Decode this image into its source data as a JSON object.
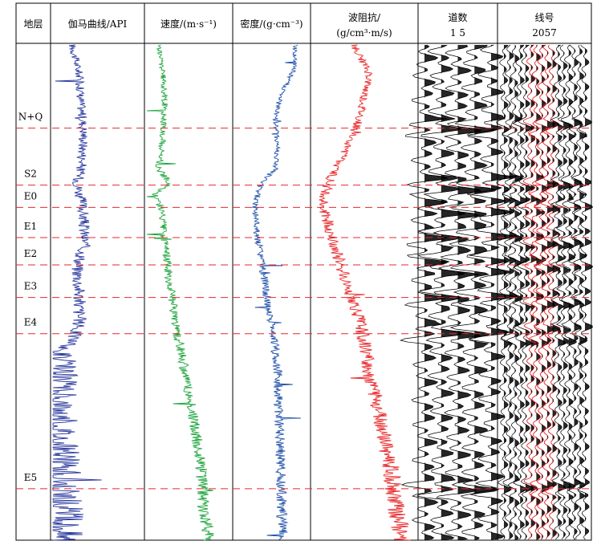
{
  "chart_data": {
    "type": "line",
    "title": "",
    "tracks": [
      {
        "key": "strata",
        "header": [
          "地层"
        ]
      },
      {
        "key": "gamma",
        "header": [
          "伽马曲线/API"
        ],
        "color": "#2b3a9e"
      },
      {
        "key": "velocity",
        "header": [
          "速度/(m·s⁻¹)"
        ],
        "color": "#1aa33a"
      },
      {
        "key": "density",
        "header": [
          "密度/(g·cm⁻³)"
        ],
        "color": "#1f4fa8"
      },
      {
        "key": "impedance",
        "header": [
          "波阻抗/",
          "(g/cm³·m/s)"
        ],
        "color": "#e8272a"
      },
      {
        "key": "trace_number",
        "header": [
          "道数",
          "1      5"
        ],
        "color": "#000000"
      },
      {
        "key": "line_number",
        "header": [
          "线号",
          "2057"
        ],
        "color": "#000000",
        "overlay_color": "#e8272a"
      }
    ],
    "strata": [
      {
        "label": "N+Q",
        "boundary_depth": 0.168
      },
      {
        "label": "S2",
        "boundary_depth": 0.283
      },
      {
        "label": "E0",
        "boundary_depth": 0.328
      },
      {
        "label": "E1",
        "boundary_depth": 0.389
      },
      {
        "label": "E2",
        "boundary_depth": 0.444
      },
      {
        "label": "E3",
        "boundary_depth": 0.51
      },
      {
        "label": "E4",
        "boundary_depth": 0.583
      },
      {
        "label": "E5",
        "boundary_depth": 0.896
      }
    ],
    "boundary_line_color": "#e8272a",
    "log_shapes": {
      "gamma": [
        [
          0.0,
          0.22
        ],
        [
          0.06,
          0.3
        ],
        [
          0.12,
          0.32
        ],
        [
          0.18,
          0.35
        ],
        [
          0.24,
          0.33
        ],
        [
          0.28,
          0.28
        ],
        [
          0.33,
          0.34
        ],
        [
          0.4,
          0.36
        ],
        [
          0.45,
          0.28
        ],
        [
          0.5,
          0.3
        ],
        [
          0.56,
          0.3
        ],
        [
          0.6,
          0.22
        ],
        [
          0.62,
          0.05
        ],
        [
          0.7,
          0.06
        ],
        [
          0.8,
          0.08
        ],
        [
          0.9,
          0.12
        ],
        [
          1.0,
          0.14
        ]
      ],
      "velocity": [
        [
          0.0,
          0.15
        ],
        [
          0.06,
          0.2
        ],
        [
          0.12,
          0.22
        ],
        [
          0.18,
          0.2
        ],
        [
          0.25,
          0.15
        ],
        [
          0.28,
          0.28
        ],
        [
          0.3,
          0.1
        ],
        [
          0.33,
          0.18
        ],
        [
          0.4,
          0.22
        ],
        [
          0.5,
          0.3
        ],
        [
          0.58,
          0.36
        ],
        [
          0.65,
          0.45
        ],
        [
          0.75,
          0.55
        ],
        [
          0.85,
          0.65
        ],
        [
          0.95,
          0.68
        ],
        [
          1.0,
          0.75
        ]
      ],
      "density": [
        [
          0.0,
          0.82
        ],
        [
          0.05,
          0.8
        ],
        [
          0.1,
          0.62
        ],
        [
          0.15,
          0.55
        ],
        [
          0.2,
          0.58
        ],
        [
          0.25,
          0.55
        ],
        [
          0.28,
          0.35
        ],
        [
          0.32,
          0.28
        ],
        [
          0.38,
          0.3
        ],
        [
          0.45,
          0.38
        ],
        [
          0.52,
          0.45
        ],
        [
          0.58,
          0.52
        ],
        [
          0.66,
          0.58
        ],
        [
          0.75,
          0.6
        ],
        [
          0.85,
          0.62
        ],
        [
          1.0,
          0.65
        ]
      ],
      "impedance": [
        [
          0.0,
          0.4
        ],
        [
          0.06,
          0.55
        ],
        [
          0.1,
          0.5
        ],
        [
          0.15,
          0.45
        ],
        [
          0.2,
          0.35
        ],
        [
          0.28,
          0.15
        ],
        [
          0.32,
          0.1
        ],
        [
          0.38,
          0.18
        ],
        [
          0.45,
          0.28
        ],
        [
          0.52,
          0.4
        ],
        [
          0.58,
          0.48
        ],
        [
          0.66,
          0.55
        ],
        [
          0.75,
          0.65
        ],
        [
          0.85,
          0.75
        ],
        [
          0.95,
          0.82
        ],
        [
          1.0,
          0.86
        ]
      ]
    },
    "log_noise": {
      "gamma": 0.07,
      "velocity": 0.05,
      "density": 0.05,
      "impedance": 0.06
    },
    "grid": false,
    "legend": "none"
  }
}
